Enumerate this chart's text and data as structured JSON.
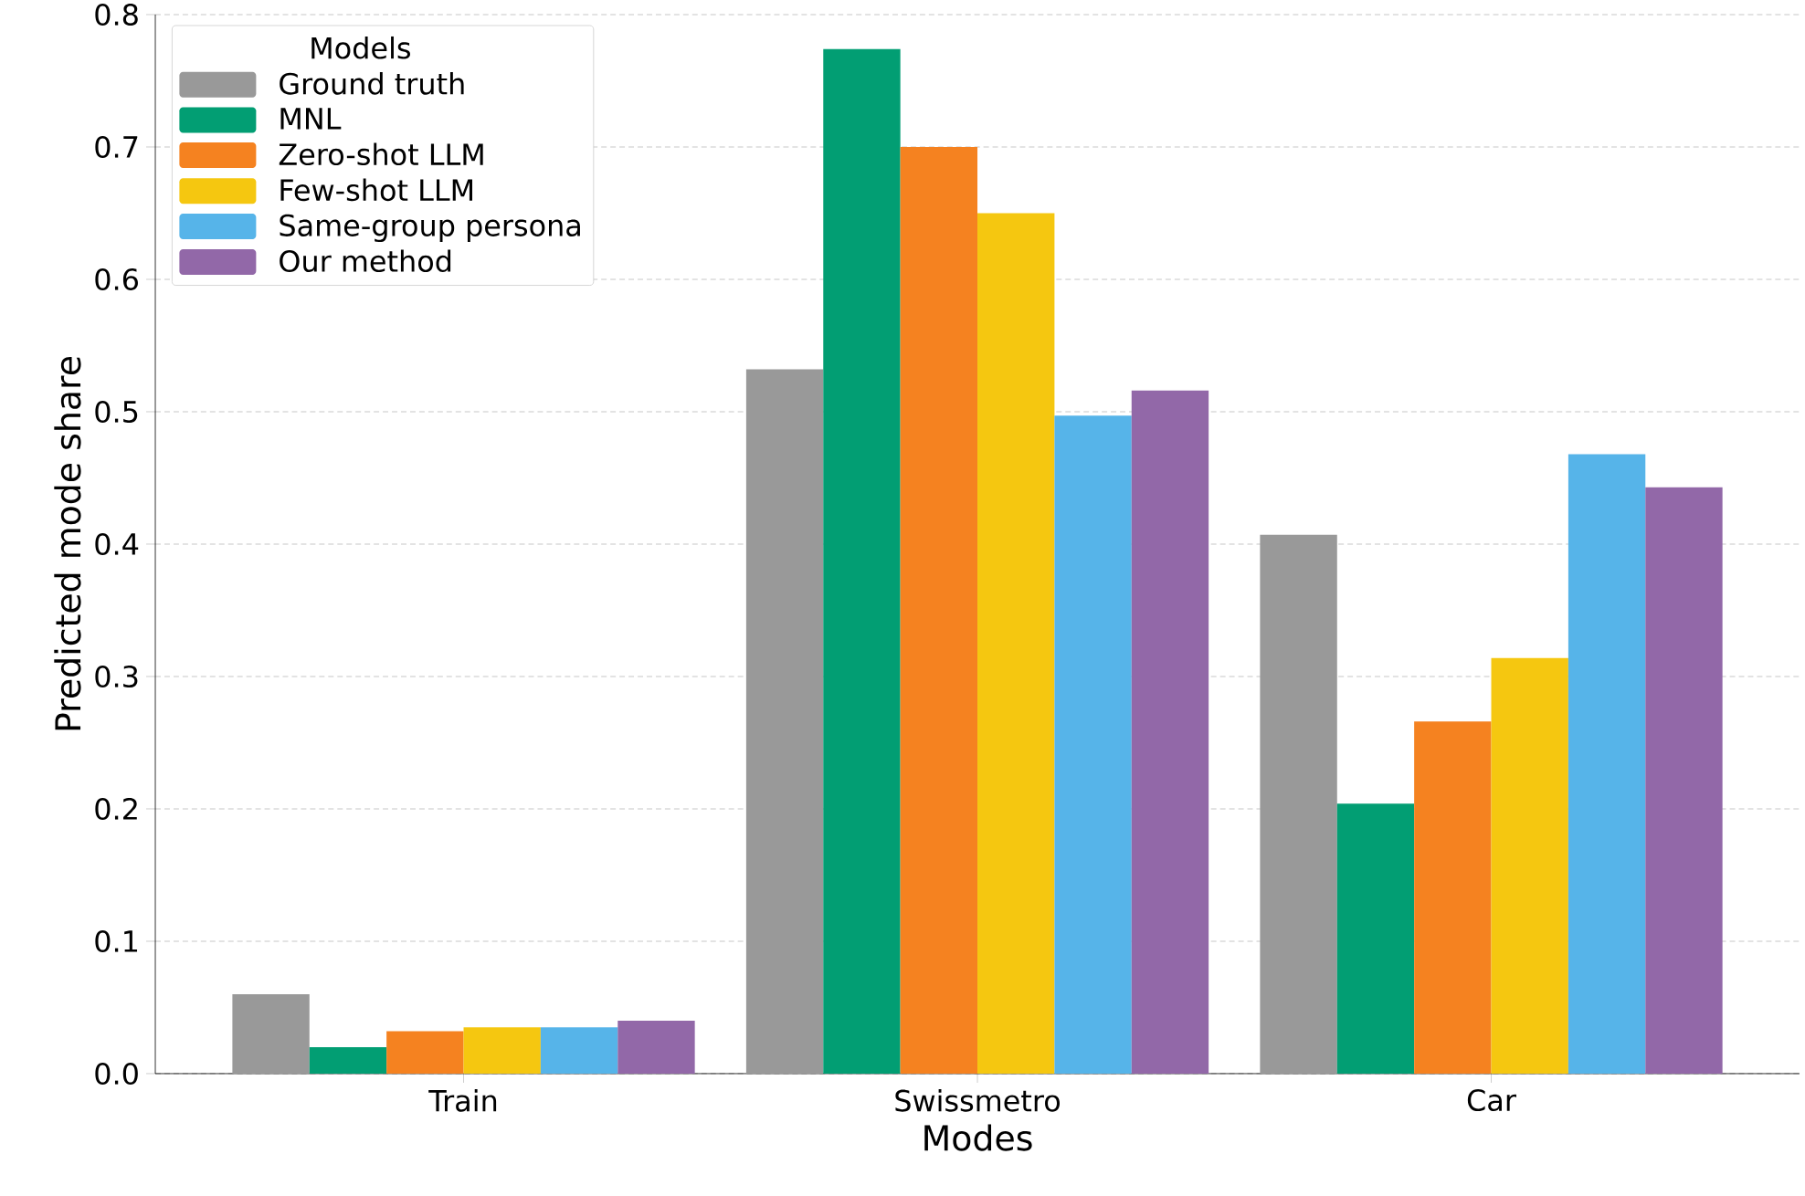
{
  "chart_data": {
    "type": "bar",
    "xlabel": "Modes",
    "ylabel": "Predicted mode share",
    "legend_title": "Models",
    "categories": [
      "Train",
      "Swissmetro",
      "Car"
    ],
    "series": [
      {
        "name": "Ground truth",
        "color": "#999999",
        "values": [
          0.06,
          0.532,
          0.407
        ]
      },
      {
        "name": "MNL",
        "color": "#029e73",
        "values": [
          0.02,
          0.774,
          0.204
        ]
      },
      {
        "name": "Zero-shot LLM",
        "color": "#f58220",
        "values": [
          0.032,
          0.7,
          0.266
        ]
      },
      {
        "name": "Few-shot LLM",
        "color": "#f5c710",
        "values": [
          0.035,
          0.65,
          0.314
        ]
      },
      {
        "name": "Same-group persona",
        "color": "#56b4e9",
        "values": [
          0.035,
          0.497,
          0.468
        ]
      },
      {
        "name": "Our method",
        "color": "#9268a8",
        "values": [
          0.04,
          0.516,
          0.443
        ]
      }
    ],
    "ylim": [
      0,
      0.8
    ],
    "yticks": [
      {
        "value": 0,
        "label": "0.0"
      },
      0.1,
      0.2,
      0.3,
      0.4,
      0.5,
      0.6,
      0.7,
      0.8
    ],
    "grid": "y",
    "legend": "top left"
  }
}
